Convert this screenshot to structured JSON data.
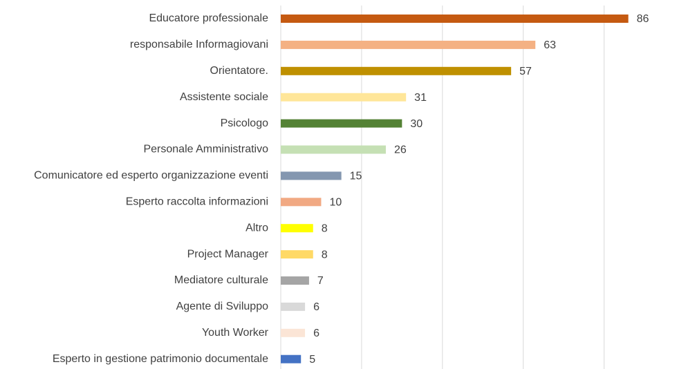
{
  "chart_data": {
    "type": "barh",
    "categories": [
      "Educatore professionale",
      "responsabile Informagiovani",
      "Orientatore.",
      "Assistente sociale",
      "Psicologo",
      "Personale Amministrativo",
      "Comunicatore ed esperto organizzazione eventi",
      "Esperto raccolta informazioni",
      "Altro",
      "Project Manager",
      "Mediatore culturale",
      "Agente di Sviluppo",
      "Youth Worker",
      "Esperto in gestione patrimonio documentale"
    ],
    "values": [
      86,
      63,
      57,
      31,
      30,
      26,
      15,
      10,
      8,
      8,
      7,
      6,
      6,
      5
    ],
    "colors": [
      "#c55a11",
      "#f4b183",
      "#bf9000",
      "#ffe699",
      "#548235",
      "#c5e0b4",
      "#8497b0",
      "#f1a983",
      "#ffff00",
      "#ffd966",
      "#a5a5a5",
      "#d9d9d9",
      "#fbe5d6",
      "#4472c4"
    ],
    "xlim": [
      0,
      90
    ],
    "xticks": [
      0,
      20,
      40,
      60,
      80
    ],
    "grid": true
  }
}
